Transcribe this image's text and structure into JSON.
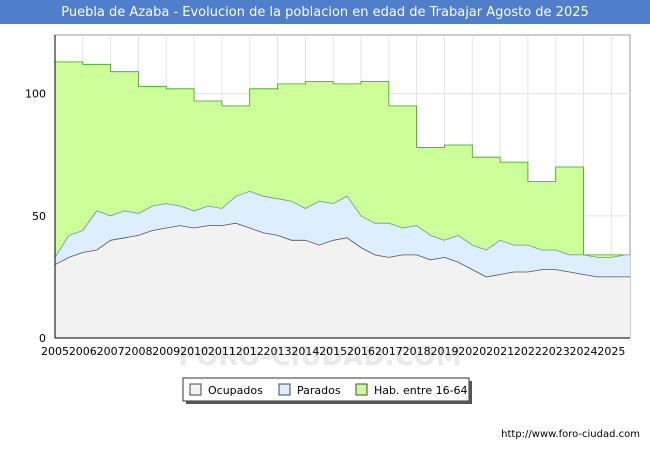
{
  "chart_data": {
    "type": "area",
    "title": "Puebla de Azaba - Evolucion de la poblacion en edad de Trabajar Agosto de 2025",
    "xlabel": "",
    "ylabel": "",
    "xlim": [
      2005,
      2025.67
    ],
    "ylim": [
      0,
      124
    ],
    "y_ticks": [
      0,
      50,
      100
    ],
    "x_tick_labels": [
      "2005",
      "2006",
      "2007",
      "2008",
      "2009",
      "2010",
      "2011",
      "2012",
      "2013",
      "2014",
      "2015",
      "2016",
      "2017",
      "2018",
      "2019",
      "2020",
      "2021",
      "2022",
      "2023",
      "2024",
      "2025"
    ],
    "grid": true,
    "legend_position": "bottom-center",
    "series": [
      {
        "name": "Hab. entre 16-64",
        "color": "#ccff99",
        "step": true,
        "x": [
          2005,
          2006,
          2007,
          2008,
          2009,
          2010,
          2011,
          2012,
          2013,
          2014,
          2015,
          2016,
          2017,
          2018,
          2019,
          2020,
          2021,
          2022,
          2023,
          2024,
          2025
        ],
        "values": [
          113,
          112,
          109,
          103,
          102,
          97,
          95,
          102,
          104,
          105,
          104,
          105,
          95,
          78,
          79,
          74,
          72,
          64,
          70,
          34,
          34
        ]
      },
      {
        "name": "Parados",
        "color": "#ddeeff",
        "x": [
          2005,
          2005.5,
          2006,
          2006.5,
          2007,
          2007.5,
          2008,
          2008.5,
          2009,
          2009.5,
          2010,
          2010.5,
          2011,
          2011.5,
          2012,
          2012.5,
          2013,
          2013.5,
          2014,
          2014.5,
          2015,
          2015.5,
          2016,
          2016.5,
          2017,
          2017.5,
          2018,
          2018.5,
          2019,
          2019.5,
          2020,
          2020.5,
          2021,
          2021.5,
          2022,
          2022.5,
          2023,
          2023.5,
          2024,
          2024.5,
          2025,
          2025.5
        ],
        "values": [
          33,
          42,
          44,
          52,
          50,
          52,
          51,
          54,
          55,
          54,
          52,
          54,
          53,
          58,
          60,
          58,
          57,
          56,
          53,
          56,
          55,
          58,
          50,
          47,
          47,
          45,
          46,
          42,
          40,
          42,
          38,
          36,
          40,
          38,
          38,
          36,
          36,
          34,
          34,
          33,
          33,
          34
        ]
      },
      {
        "name": "Ocupados",
        "color": "#f2f2f2",
        "x": [
          2005,
          2005.5,
          2006,
          2006.5,
          2007,
          2007.5,
          2008,
          2008.5,
          2009,
          2009.5,
          2010,
          2010.5,
          2011,
          2011.5,
          2012,
          2012.5,
          2013,
          2013.5,
          2014,
          2014.5,
          2015,
          2015.5,
          2016,
          2016.5,
          2017,
          2017.5,
          2018,
          2018.5,
          2019,
          2019.5,
          2020,
          2020.5,
          2021,
          2021.5,
          2022,
          2022.5,
          2023,
          2023.5,
          2024,
          2024.5,
          2025,
          2025.5
        ],
        "values": [
          30,
          33,
          35,
          36,
          40,
          41,
          42,
          44,
          45,
          46,
          45,
          46,
          46,
          47,
          45,
          43,
          42,
          40,
          40,
          38,
          40,
          41,
          37,
          34,
          33,
          34,
          34,
          32,
          33,
          31,
          28,
          25,
          26,
          27,
          27,
          28,
          28,
          27,
          26,
          25,
          25,
          25
        ]
      }
    ]
  },
  "legend": {
    "items": [
      {
        "label": "Ocupados",
        "color": "#f2f2f2"
      },
      {
        "label": "Parados",
        "color": "#ddeeff"
      },
      {
        "label": "Hab. entre 16-64",
        "color": "#ccff99"
      }
    ]
  },
  "footer": {
    "credit": "http://www.foro-ciudad.com",
    "watermark": "FORO-CIUDAD.COM"
  }
}
